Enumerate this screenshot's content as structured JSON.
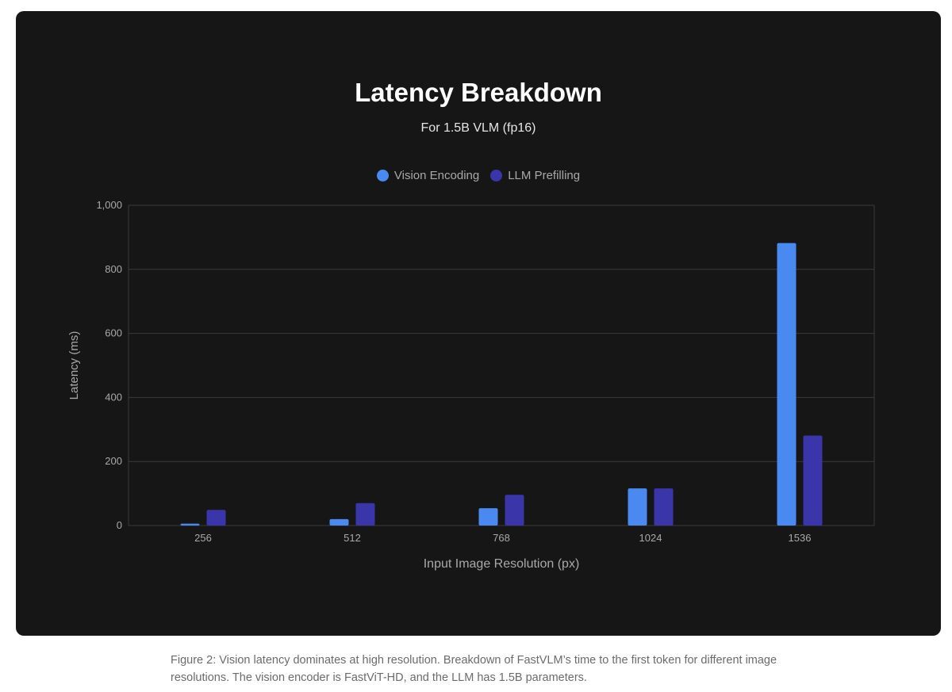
{
  "colors": {
    "vision_encoding": "#4a8af0",
    "llm_prefilling": "#3b35aa",
    "grid": "#3a3a3a",
    "tick_text": "#a9a9a9"
  },
  "chart_data": {
    "type": "bar",
    "title": "Latency Breakdown",
    "subtitle": "For 1.5B VLM (fp16)",
    "xlabel": "Input Image Resolution (px)",
    "ylabel": "Latency (ms)",
    "categories": [
      "256",
      "512",
      "768",
      "1024",
      "1536"
    ],
    "series": [
      {
        "name": "Vision Encoding",
        "values": [
          6,
          20,
          54,
          116,
          882
        ]
      },
      {
        "name": "LLM Prefilling",
        "values": [
          49,
          70,
          96,
          116,
          281
        ]
      }
    ],
    "ylim": [
      0,
      1000
    ],
    "yticks": [
      0,
      200,
      400,
      600,
      800,
      1000
    ],
    "ytick_labels": [
      "0",
      "200",
      "400",
      "600",
      "800",
      "1,000"
    ],
    "grid": true,
    "legend_position": "top-center"
  },
  "caption": "Figure 2: Vision latency dominates at high resolution. Breakdown of FastVLM’s time to the first token for different image resolutions. The vision encoder is FastViT-HD, and the LLM has 1.5B parameters."
}
